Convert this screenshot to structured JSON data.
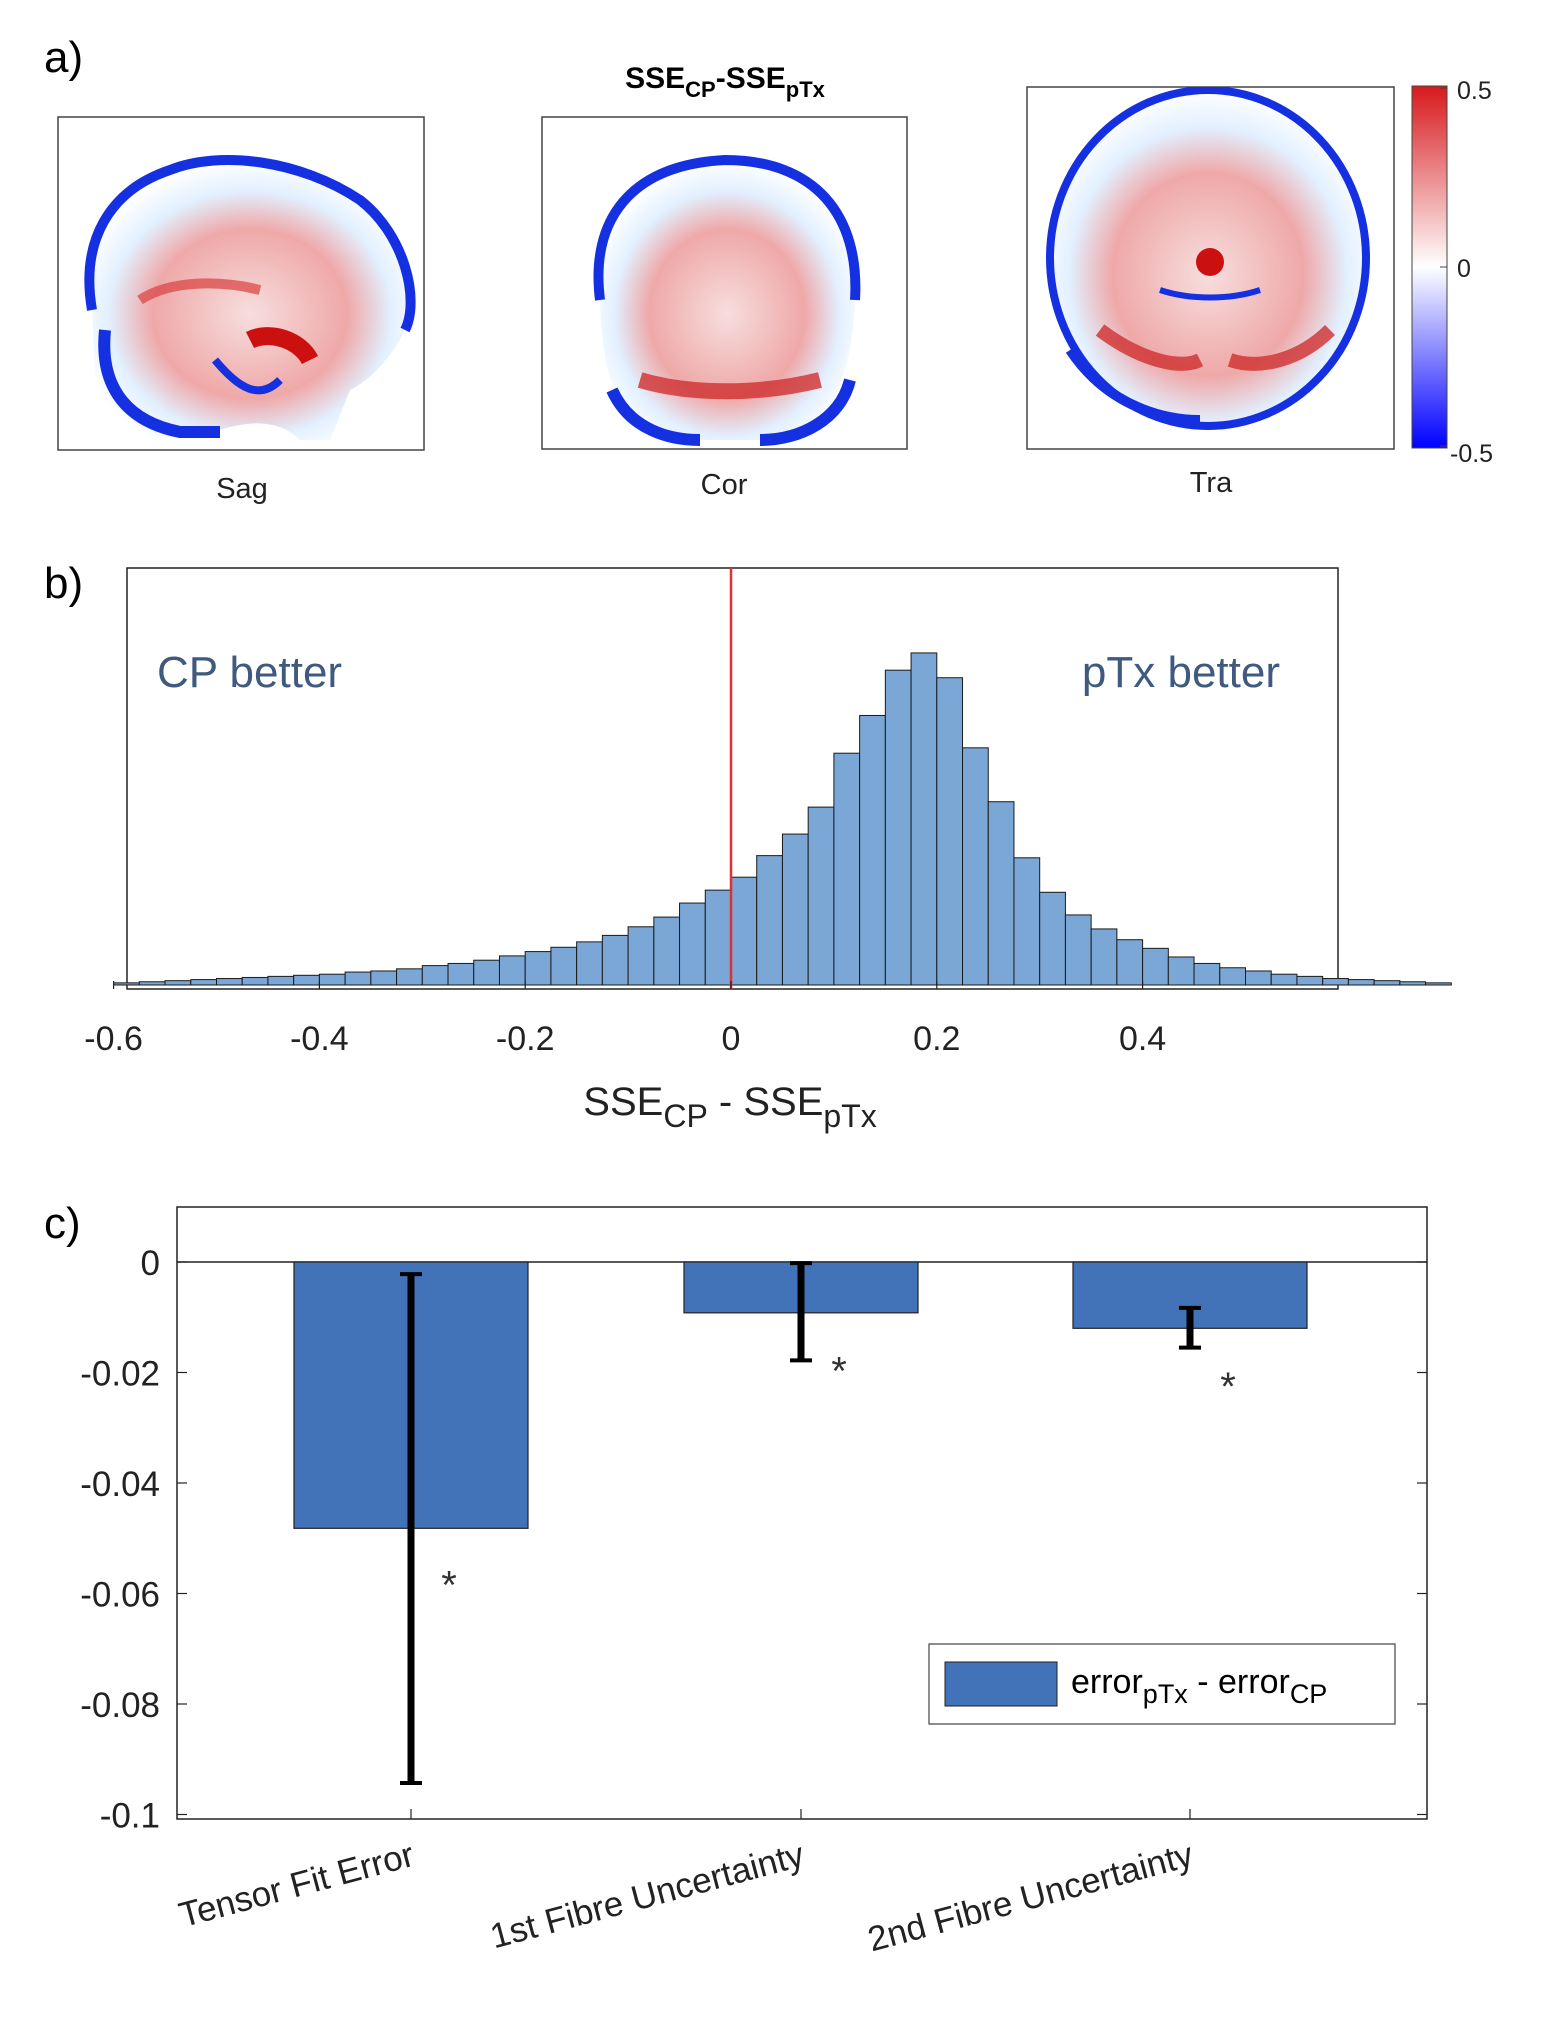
{
  "panel_labels": {
    "a": "a)",
    "b": "b)",
    "c": "c)"
  },
  "panel_a": {
    "title_main_1": "SSE",
    "title_sub_1": "CP",
    "title_dash": "-",
    "title_main_2": "SSE",
    "title_sub_2": "pTx",
    "views": [
      {
        "label": "Sag"
      },
      {
        "label": "Cor"
      },
      {
        "label": "Tra"
      }
    ],
    "colorbar": {
      "max_label": "0.5",
      "mid_label": "0",
      "min_label": "-0.5",
      "colors": [
        "#d7191c",
        "#ffffff",
        "#0000ff"
      ]
    }
  },
  "chart_data": [
    {
      "type": "bar",
      "subtype": "histogram",
      "title": "",
      "xlabel_main_1": "SSE",
      "xlabel_sub_1": "CP",
      "xlabel_mid": " - SSE",
      "xlabel_sub_2": "pTx",
      "ylabel": "",
      "xlim": [
        -0.6,
        0.6
      ],
      "bin_width": 0.025,
      "bin_start": -0.6,
      "counts": [
        2,
        3,
        4,
        5,
        6,
        7,
        8,
        9,
        10,
        12,
        13,
        15,
        18,
        20,
        23,
        27,
        31,
        35,
        40,
        46,
        54,
        63,
        76,
        88,
        100,
        120,
        140,
        165,
        215,
        250,
        292,
        308,
        285,
        220,
        170,
        118,
        86,
        65,
        52,
        42,
        34,
        26,
        20,
        16,
        13,
        10,
        8,
        6,
        5,
        4,
        3,
        2
      ],
      "ylim": [
        0,
        320
      ],
      "xticks": [
        -0.6,
        -0.4,
        -0.2,
        0,
        0.2,
        0.4
      ],
      "xtick_labels": [
        "-0.6",
        "-0.4",
        "-0.2",
        "0",
        "0.2",
        "0.4"
      ],
      "vline_x": 0,
      "annotations": {
        "left": "CP better",
        "right": "pTx better"
      },
      "colors": {
        "bar": "#7aa7d5",
        "edge": "#1a1a1a",
        "vline": "#e03030",
        "annotation": "#3f5a7e"
      }
    },
    {
      "type": "bar",
      "title": "",
      "xlabel": "",
      "ylabel": "",
      "categories": [
        "Tensor Fit Error",
        "1st Fibre Uncertainty",
        "2nd Fibre Uncertainty"
      ],
      "values": [
        -0.0482,
        -0.0092,
        -0.012
      ],
      "error_low": [
        -0.0943,
        -0.0178,
        -0.0155
      ],
      "error_high": [
        -0.0022,
        -0.0002,
        -0.0083
      ],
      "significance_mark": "*",
      "significance_y": [
        -0.058,
        -0.0193,
        -0.0221
      ],
      "ylim": [
        -0.1,
        0.01
      ],
      "yticks": [
        0,
        -0.02,
        -0.04,
        -0.06,
        -0.08,
        -0.1
      ],
      "ytick_labels": [
        "0",
        "-0.02",
        "-0.04",
        "-0.06",
        "-0.08",
        "-0.1"
      ],
      "legend": {
        "main_1": "error",
        "sub_1": "pTx",
        "mid": " - error",
        "sub_2": "CP",
        "placement": "bottom-right"
      },
      "colors": {
        "bar": "#4272b8",
        "error_bar": "#000000",
        "mark": "#333333"
      }
    }
  ]
}
